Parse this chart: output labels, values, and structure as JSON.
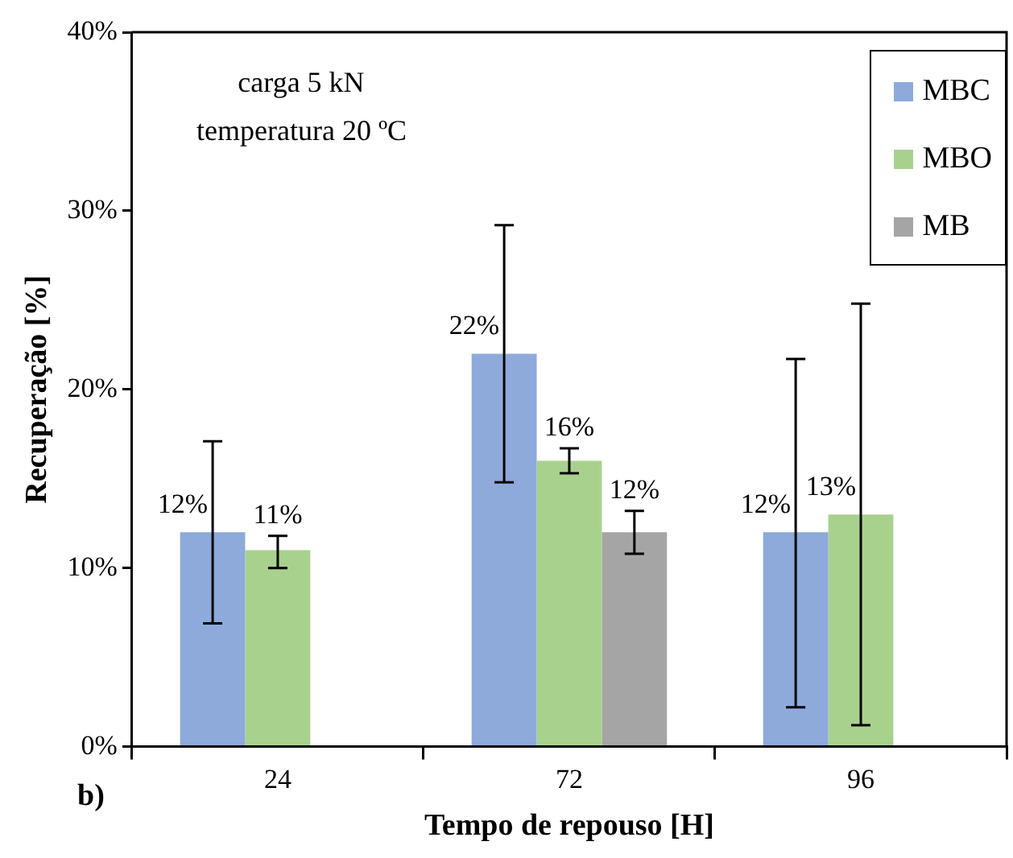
{
  "chart_data": {
    "type": "bar",
    "xlabel": "Tempo de repouso [H]",
    "ylabel": "Recuperação [%]",
    "categories": [
      "24",
      "72",
      "96"
    ],
    "series": [
      {
        "name": "MBC",
        "color": "#8eaadb",
        "values": [
          12,
          22,
          12
        ],
        "value_labels": [
          "12%",
          "22%",
          "12%"
        ],
        "errors": [
          [
            6.9,
            17.1
          ],
          [
            14.8,
            29.2
          ],
          [
            2.2,
            21.7
          ]
        ]
      },
      {
        "name": "MBO",
        "color": "#a9d18e",
        "values": [
          11,
          16,
          13
        ],
        "value_labels": [
          "11%",
          "16%",
          "13%"
        ],
        "errors": [
          [
            10.0,
            11.8
          ],
          [
            15.3,
            16.7
          ],
          [
            1.2,
            24.8
          ]
        ]
      },
      {
        "name": "MB",
        "color": "#a5a5a5",
        "values": [
          null,
          12,
          null
        ],
        "value_labels": [
          null,
          "12%",
          null
        ],
        "errors": [
          null,
          [
            10.8,
            13.2
          ],
          null
        ]
      }
    ],
    "ylim": [
      0,
      40
    ],
    "yticks": [
      {
        "value": 0,
        "label": "0%"
      },
      {
        "value": 10,
        "label": "10%"
      },
      {
        "value": 20,
        "label": "20%"
      },
      {
        "value": 30,
        "label": "30%"
      },
      {
        "value": 40,
        "label": "40%"
      }
    ],
    "grid": false,
    "legend": "top right",
    "annotations": [
      "carga 5 kN\ntemperatura 20 ºC",
      "b)"
    ]
  }
}
